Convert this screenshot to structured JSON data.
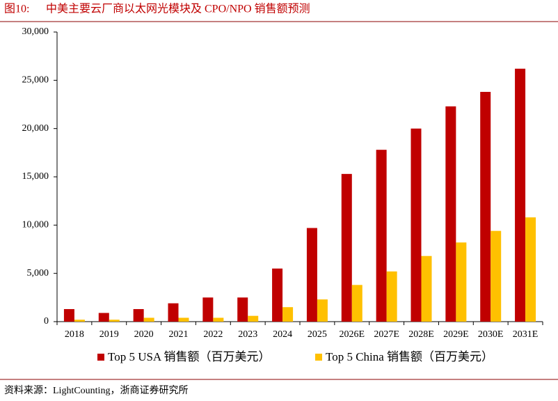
{
  "chart_data": {
    "type": "bar",
    "figure_label": "图10:",
    "title": "中美主要云厂商以太网光模块及 CPO/NPO 销售额预测",
    "source": "资料来源：LightCounting，浙商证券研究所",
    "categories": [
      "2018",
      "2019",
      "2020",
      "2021",
      "2022",
      "2023",
      "2024",
      "2025",
      "2026E",
      "2027E",
      "2028E",
      "2029E",
      "2030E",
      "2031E"
    ],
    "series": [
      {
        "name": "Top 5 USA 销售额（百万美元）",
        "color": "#c00000",
        "values": [
          1300,
          900,
          1300,
          1900,
          2500,
          2500,
          5500,
          9700,
          15300,
          17800,
          20000,
          22300,
          23800,
          26200
        ]
      },
      {
        "name": "Top 5 China 销售额（百万美元）",
        "color": "#ffc000",
        "values": [
          200,
          200,
          400,
          400,
          400,
          600,
          1500,
          2300,
          3800,
          5200,
          6800,
          8200,
          9400,
          10800
        ]
      }
    ],
    "ylim": [
      0,
      30000
    ],
    "yticks": [
      0,
      {
        "value": 5000,
        "label": "5,000"
      },
      {
        "value": 10000,
        "label": "10,000"
      },
      {
        "value": 15000,
        "label": "15,000"
      },
      {
        "value": 20000,
        "label": "20,000"
      },
      {
        "value": 25000,
        "label": "25,000"
      },
      {
        "value": 30000,
        "label": "30,000"
      }
    ],
    "grid": false,
    "legend": "bottom"
  }
}
